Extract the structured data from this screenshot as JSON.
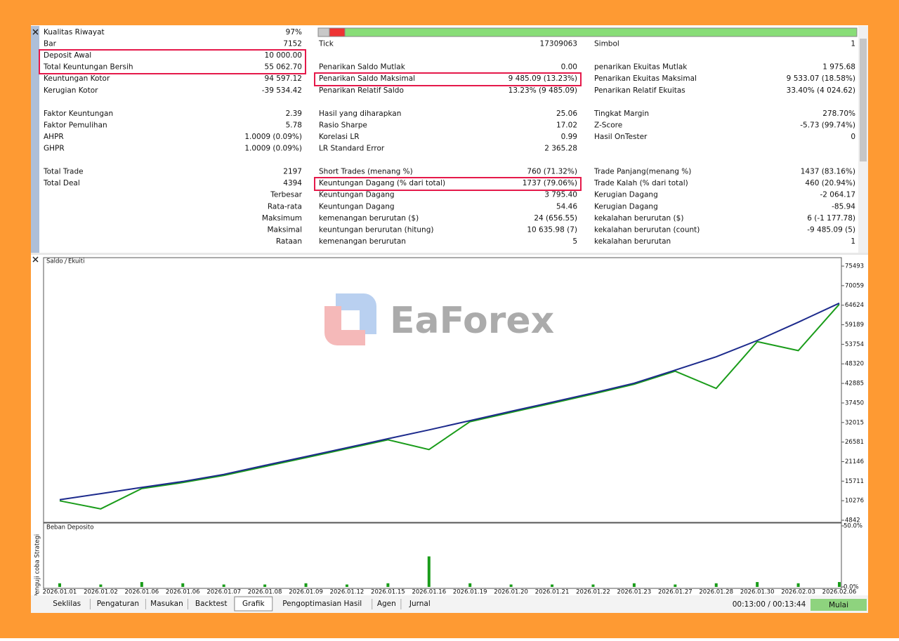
{
  "report": {
    "rows": [
      [
        "Kualitas Riwayat",
        "97%",
        null,
        null,
        null,
        null
      ],
      [
        "Bar",
        "7152",
        "Tick",
        "17309063",
        "Simbol",
        "1"
      ],
      [
        "Deposit Awal",
        "10 000.00",
        null,
        null,
        null,
        null
      ],
      [
        "Total Keuntungan Bersih",
        "55 062.70",
        "Penarikan Saldo Mutlak",
        "0.00",
        "penarikan Ekuitas Mutlak",
        "1 975.68"
      ],
      [
        "Keuntungan Kotor",
        "94 597.12",
        "Penarikan Saldo Maksimal",
        "9 485.09 (13.23%)",
        "Penarikan Ekuitas Maksimal",
        "9 533.07 (18.58%)"
      ],
      [
        "Kerugian Kotor",
        "-39 534.42",
        "Penarikan Relatif Saldo",
        "13.23% (9 485.09)",
        "Penarikan Relatif Ekuitas",
        "33.40% (4 024.62)"
      ],
      [],
      [
        "Faktor Keuntungan",
        "2.39",
        "Hasil yang diharapkan",
        "25.06",
        "Tingkat Margin",
        "278.70%"
      ],
      [
        "Faktor Pemulihan",
        "5.78",
        "Rasio Sharpe",
        "17.02",
        "Z-Score",
        "-5.73 (99.74%)"
      ],
      [
        "AHPR",
        "1.0009 (0.09%)",
        "Korelasi LR",
        "0.99",
        "Hasil OnTester",
        "0"
      ],
      [
        "GHPR",
        "1.0009 (0.09%)",
        "LR Standard Error",
        "2 365.28",
        null,
        null
      ],
      [],
      [
        "Total Trade",
        "2197",
        "Short Trades (menang %)",
        "760 (71.32%)",
        "Trade Panjang(menang %)",
        "1437 (83.16%)"
      ],
      [
        "Total Deal",
        "4394",
        "Keuntungan Dagang (% dari total)",
        "1737 (79.06%)",
        "Trade Kalah (% dari total)",
        "460 (20.94%)"
      ],
      [
        null,
        "Terbesar",
        "Keuntungan Dagang",
        "3 795.40",
        "Kerugian Dagang",
        "-2 064.17"
      ],
      [
        null,
        "Rata-rata",
        "Keuntungan Dagang",
        "54.46",
        "Kerugian Dagang",
        "-85.94"
      ],
      [
        null,
        "Maksimum",
        "kemenangan berurutan ($)",
        "24 (656.55)",
        "kekalahan berurutan ($)",
        "6 (-1 177.78)"
      ],
      [
        null,
        "Maksimal",
        "keuntungan berurutan (hitung)",
        "10 635.98 (7)",
        "kekalahan berurutan (count)",
        "-9 485.09 (5)"
      ],
      [
        null,
        "Rataan",
        "kemenangan berurutan",
        "5",
        "kekalahan berurutan",
        "1"
      ]
    ]
  },
  "watermark": "EaForex",
  "side_label": "Penguji coba Strategi",
  "chart_data": [
    {
      "type": "line",
      "categories": [
        "2026.01.01",
        "2026.01.02",
        "2026.01.06",
        "2026.01.06",
        "2026.01.07",
        "2026.01.08",
        "2026.01.09",
        "2026.01.12",
        "2026.01.15",
        "2026.01.16",
        "2026.01.19",
        "2026.01.20",
        "2026.01.21",
        "2026.01.22",
        "2026.01.23",
        "2026.01.27",
        "2026.01.28",
        "2026.01.30",
        "2026.02.03",
        "2026.02.06"
      ],
      "series": [
        {
          "name": "Saldo",
          "color": "#1c2a8c",
          "values": [
            10540,
            12240,
            13950,
            15620,
            17590,
            20080,
            22530,
            25010,
            27500,
            29970,
            32540,
            35120,
            37650,
            40230,
            42940,
            46580,
            50280,
            54800,
            59910,
            65200
          ]
        },
        {
          "name": "Ekuiti",
          "color": "#1a9c1a",
          "values": [
            10240,
            8000,
            13650,
            15320,
            17290,
            19780,
            22230,
            24710,
            27200,
            24500,
            32240,
            34820,
            37350,
            39930,
            42640,
            46280,
            41500,
            54500,
            52000,
            64900
          ]
        }
      ],
      "ylim": [
        4842,
        77800
      ],
      "yticks": [
        4842,
        10276,
        15711,
        21146,
        26581,
        32015,
        37450,
        42885,
        48320,
        53754,
        59189,
        64624,
        70059,
        75493
      ]
    },
    {
      "type": "bar",
      "title": "Beban Deposito",
      "color": "#1a9c1a",
      "values": [
        3,
        2,
        4,
        3,
        2,
        2,
        3,
        2,
        3,
        25,
        3,
        2,
        2,
        2,
        3,
        2,
        3,
        4,
        3,
        4
      ],
      "ylim": [
        0,
        50
      ],
      "yticks": [
        {
          "value": 0,
          "label": "0.0%"
        },
        {
          "value": 50,
          "label": "50.0%"
        }
      ]
    }
  ],
  "tabs": [
    "Seklilas",
    "Pengaturan",
    "Masukan",
    "Backtest",
    "Grafik",
    "Pengoptimasian Hasil",
    "Agen",
    "Jurnal"
  ],
  "status": "00:13:00 / 00:13:44",
  "button": "Mulai"
}
